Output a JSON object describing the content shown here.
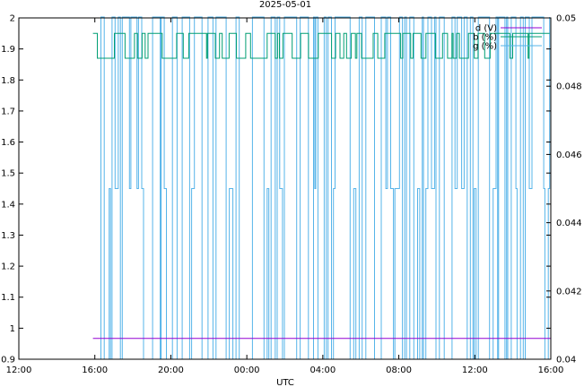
{
  "chart_data": {
    "type": "line",
    "title": "2025-05-01",
    "xlabel": "UTC",
    "ylabel": "",
    "y2label": "",
    "x_ticks": [
      "12:00",
      "16:00",
      "20:00",
      "00:00",
      "04:00",
      "08:00",
      "12:00",
      "16:00"
    ],
    "x_range_hours": [
      0,
      28
    ],
    "ylim": [
      0.9,
      2.0
    ],
    "y_ticks": [
      0.9,
      1,
      1.1,
      1.2,
      1.3,
      1.4,
      1.5,
      1.6,
      1.7,
      1.8,
      1.9,
      2
    ],
    "y2lim": [
      0.04,
      0.05
    ],
    "y2_ticks": [
      0.04,
      0.042,
      0.044,
      0.046,
      0.048,
      0.05
    ],
    "grid": false,
    "legend_position": "top-right",
    "series": [
      {
        "name": "d (V)",
        "color": "#9400d3",
        "axis": "y",
        "x_range_hours": [
          3.9,
          28
        ],
        "value": 0.967,
        "pattern": "constant"
      },
      {
        "name": "b (%)",
        "color": "#009e73",
        "axis": "y",
        "x_range_hours": [
          3.9,
          28
        ],
        "levels": [
          1.87,
          1.95
        ],
        "pattern": "switching"
      },
      {
        "name": "g (%)",
        "color": "#56b4e9",
        "axis": "y2",
        "x_range_hours": [
          3.9,
          28
        ],
        "levels": [
          0.04,
          0.045,
          0.05
        ],
        "pattern": "switching"
      }
    ]
  }
}
